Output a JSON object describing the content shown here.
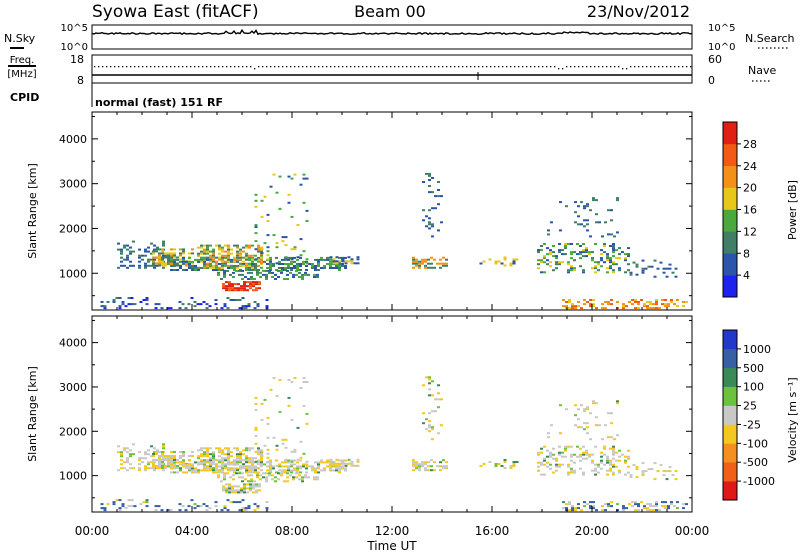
{
  "header": {
    "station": "Syowa East (fitACF)",
    "beam": "Beam 00",
    "date": "23/Nov/2012"
  },
  "top_panels": {
    "nsky_label": "N.Sky",
    "nsky_top_tick": "10^5",
    "nsky_bottom_tick": "10^0",
    "nsearch_label": "N.Search",
    "nsearch_top_tick": "10^5",
    "nsearch_bottom_tick": "10^0",
    "freq_label_line1": "Freq.",
    "freq_label_line2": "[MHz]",
    "freq_top_tick": "18",
    "freq_bottom_tick": "8",
    "nave_label": "Nave",
    "nave_top_tick": "60",
    "nave_bottom_tick": "0",
    "cpid_label": "CPID",
    "cpid_value": "normal (fast) 151 RF"
  },
  "chart_data": [
    {
      "type": "heatmap",
      "name": "power",
      "ylabel": "Slant Range [km]",
      "yticks": [
        "1000",
        "2000",
        "3000",
        "4000"
      ],
      "ylim": [
        180,
        4600
      ],
      "colorbar_label": "Power [dB]",
      "colorbar_ticks": [
        "4",
        "8",
        "12",
        "16",
        "20",
        "24",
        "28"
      ],
      "colorbar_colors": [
        "#1e22ee",
        "#2a55aa",
        "#3f7f66",
        "#4aa83c",
        "#e8c71a",
        "#f39018",
        "#f25b16",
        "#e02012"
      ],
      "data_summary": "Backscatter echoes concentrated near 1000-1500 km from 02:00-10:00 UT, scattered echoes 13:00-14:00 UT and 18:00-23:00 UT, strongest power near 700 km around 06:00 UT"
    },
    {
      "type": "heatmap",
      "name": "velocity",
      "ylabel": "Slant Range [km]",
      "yticks": [
        "1000",
        "2000",
        "3000",
        "4000"
      ],
      "ylim": [
        180,
        4600
      ],
      "colorbar_label": "Velocity [m s⁻¹]",
      "colorbar_ticks": [
        "1000",
        "500",
        "100",
        "25",
        "-25",
        "-100",
        "-500",
        "-1000"
      ],
      "colorbar_colors": [
        "#2238c8",
        "#3560a4",
        "#3a8a58",
        "#6cc23c",
        "#c8c8c8",
        "#f5c820",
        "#f59020",
        "#f06018",
        "#e01818"
      ],
      "data_summary": "Mostly near-zero (grey) velocities in the 1000-1500 km band with patches of positive (green) and negative (orange) velocities"
    }
  ],
  "xaxis": {
    "ticks": [
      "00:00",
      "04:00",
      "08:00",
      "12:00",
      "16:00",
      "20:00",
      "00:00"
    ],
    "label": "Time UT"
  }
}
